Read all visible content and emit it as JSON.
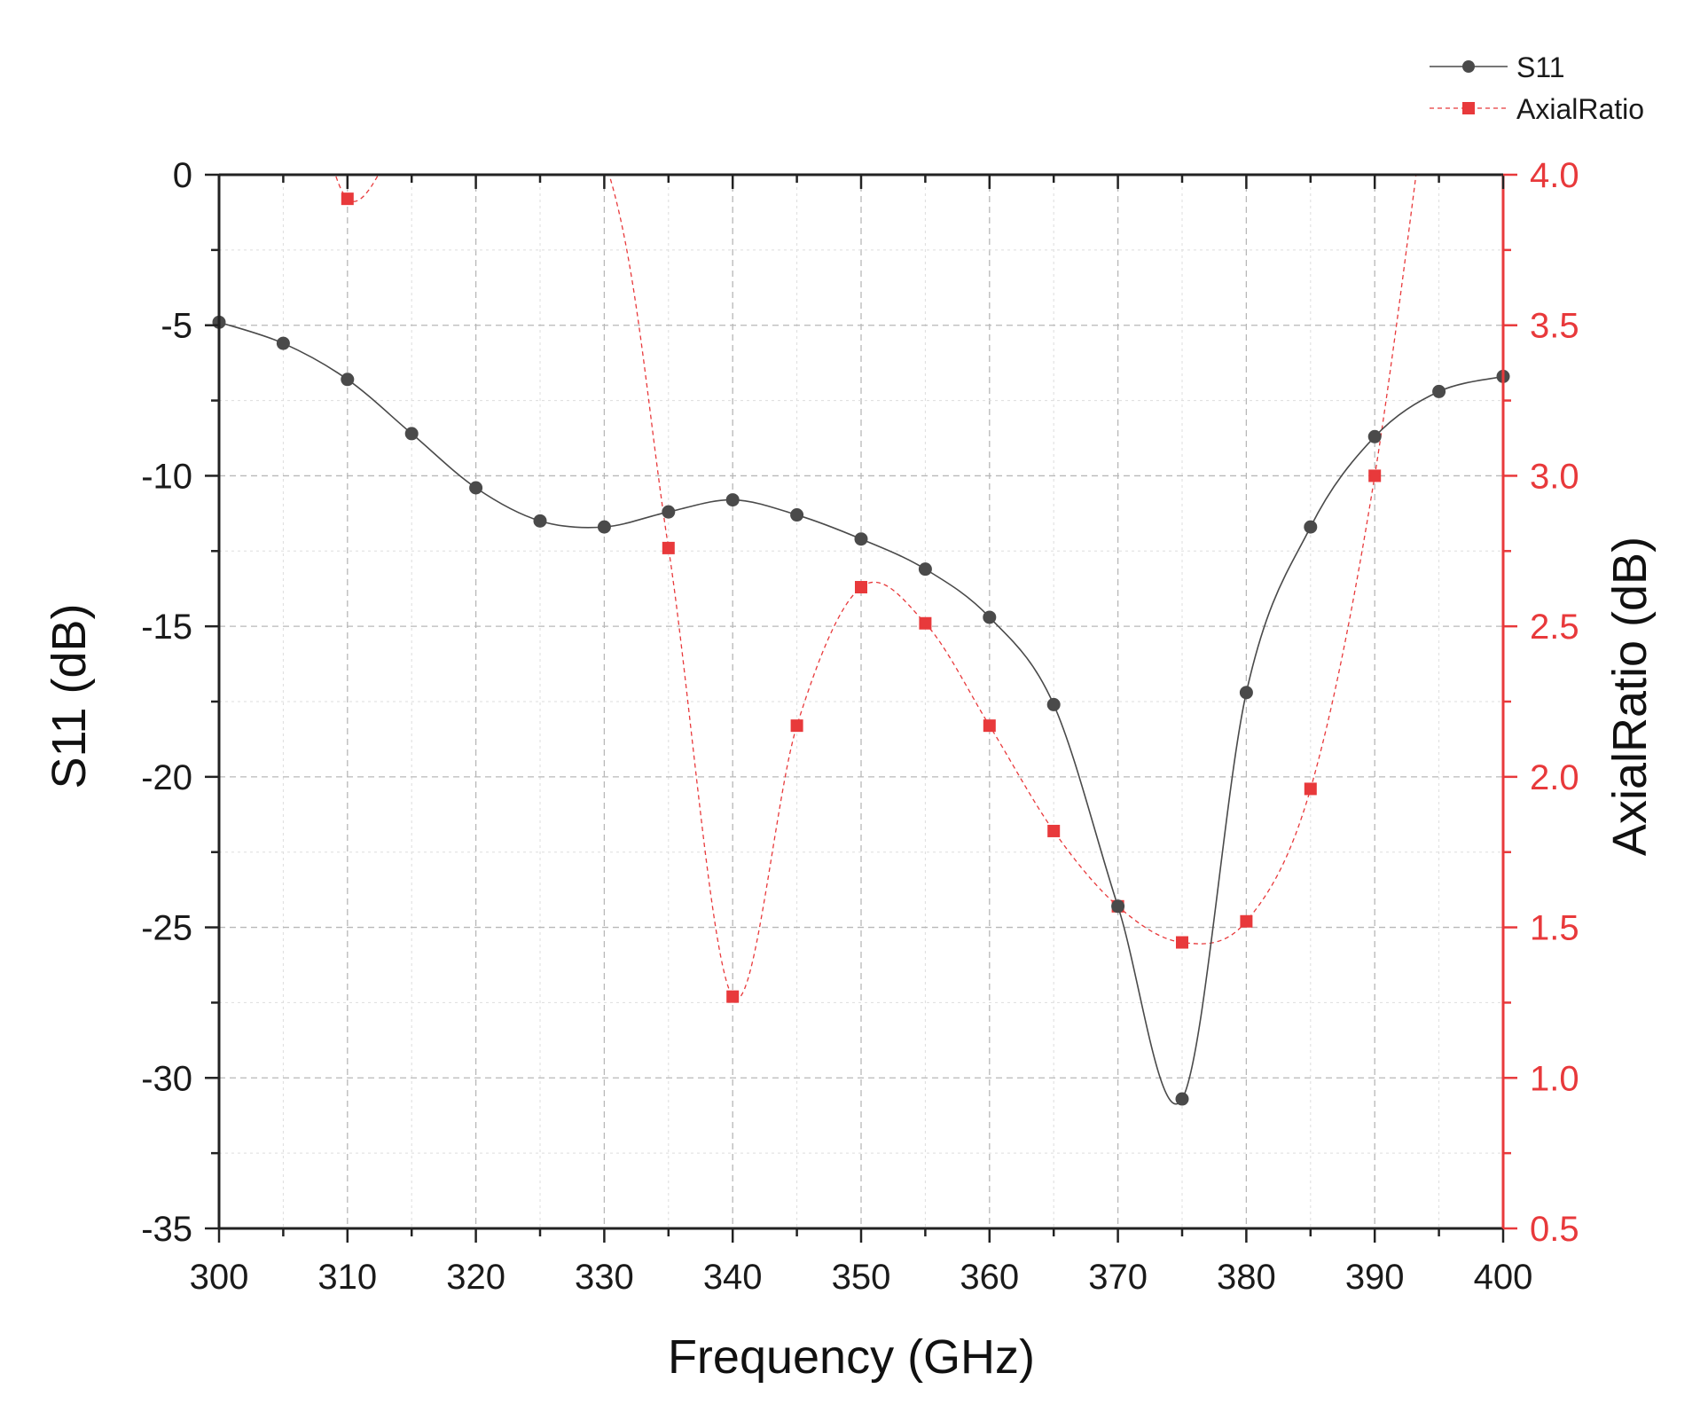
{
  "chart_data": {
    "type": "line",
    "title": "",
    "xlabel": "Frequency (GHz)",
    "ylabel": "S11 (dB)",
    "y2label": "AxialRatio (dB)",
    "xlim": [
      300,
      400
    ],
    "ylim": [
      -35,
      0
    ],
    "y2lim": [
      0.5,
      4.0
    ],
    "x_ticks": [
      300,
      310,
      320,
      330,
      340,
      350,
      360,
      370,
      380,
      390,
      400
    ],
    "y_ticks": [
      0,
      -5,
      -10,
      -15,
      -20,
      -25,
      -30,
      -35
    ],
    "y2_ticks": [
      "4.0",
      "3.5",
      "3.0",
      "2.5",
      "2.0",
      "1.5",
      "1.0",
      "0.5"
    ],
    "grid": true,
    "legend_position": "top-right",
    "series": [
      {
        "name": "S11",
        "axis": "left",
        "color": "#4a4a4a",
        "marker": "circle",
        "line_style": "solid",
        "x": [
          300,
          305,
          310,
          315,
          320,
          325,
          330,
          335,
          340,
          345,
          350,
          355,
          360,
          365,
          370,
          375,
          380,
          385,
          390,
          395,
          400
        ],
        "values": [
          -4.9,
          -5.6,
          -6.8,
          -8.6,
          -10.4,
          -11.5,
          -11.7,
          -11.2,
          -10.8,
          -11.3,
          -12.1,
          -13.1,
          -14.7,
          -17.6,
          -24.3,
          -30.7,
          -17.2,
          -11.7,
          -8.7,
          -7.2,
          -6.7
        ]
      },
      {
        "name": "AxialRatio",
        "axis": "right",
        "color": "#e8393b",
        "marker": "square",
        "line_style": "dashed",
        "x": [
          310,
          335,
          340,
          345,
          350,
          355,
          360,
          365,
          370,
          375,
          380,
          385,
          390
        ],
        "values": [
          3.92,
          2.76,
          1.27,
          2.17,
          2.63,
          2.51,
          2.17,
          1.82,
          1.57,
          1.45,
          1.52,
          1.96,
          3.0
        ]
      }
    ]
  },
  "legend": {
    "s11_label": "S11",
    "ar_label": "AxialRatio"
  },
  "colors": {
    "s11": "#4a4a4a",
    "axial_ratio": "#e8393b",
    "axis": "#222222",
    "grid": "#b8b8b8"
  }
}
